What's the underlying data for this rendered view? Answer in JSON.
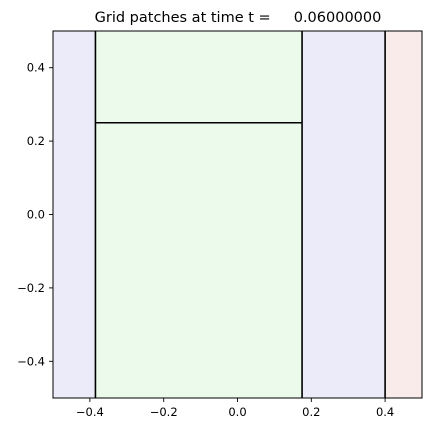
{
  "chart_data": {
    "type": "patches",
    "title": "Grid patches at time t =     0.06000000",
    "xlabel": "",
    "ylabel": "",
    "xlim": [
      -0.5,
      0.5
    ],
    "ylim": [
      -0.5,
      0.5
    ],
    "grid": false,
    "x_ticks": [
      {
        "value": -0.4,
        "label": "−0.4"
      },
      {
        "value": -0.2,
        "label": "−0.2"
      },
      {
        "value": 0.0,
        "label": "0.0"
      },
      {
        "value": 0.2,
        "label": "0.2"
      },
      {
        "value": 0.4,
        "label": "0.4"
      }
    ],
    "y_ticks": [
      {
        "value": 0.4,
        "label": "0.4"
      },
      {
        "value": 0.2,
        "label": "0.2"
      },
      {
        "value": 0.0,
        "label": "0.0"
      },
      {
        "value": -0.2,
        "label": "−0.2"
      },
      {
        "value": -0.4,
        "label": "−0.4"
      }
    ],
    "patches": [
      {
        "x0": -0.5,
        "x1": -0.385,
        "y0": -0.5,
        "y1": 0.5,
        "fill": "#ebebfa"
      },
      {
        "x0": -0.385,
        "x1": 0.175,
        "y0": -0.5,
        "y1": 0.5,
        "fill": "#ebfaeb"
      },
      {
        "x0": 0.175,
        "x1": 0.4,
        "y0": -0.5,
        "y1": 0.5,
        "fill": "#ebebfa"
      },
      {
        "x0": 0.4,
        "x1": 0.5,
        "y0": -0.5,
        "y1": 0.5,
        "fill": "#faebeb"
      }
    ],
    "boundaries": [
      {
        "x0": -0.385,
        "y0": -0.5,
        "x1": -0.385,
        "y1": 0.5
      },
      {
        "x0": 0.175,
        "y0": -0.5,
        "x1": 0.175,
        "y1": 0.5
      },
      {
        "x0": 0.4,
        "y0": -0.5,
        "x1": 0.4,
        "y1": 0.5
      },
      {
        "x0": -0.385,
        "y0": 0.25,
        "x1": 0.175,
        "y1": 0.25
      }
    ]
  }
}
